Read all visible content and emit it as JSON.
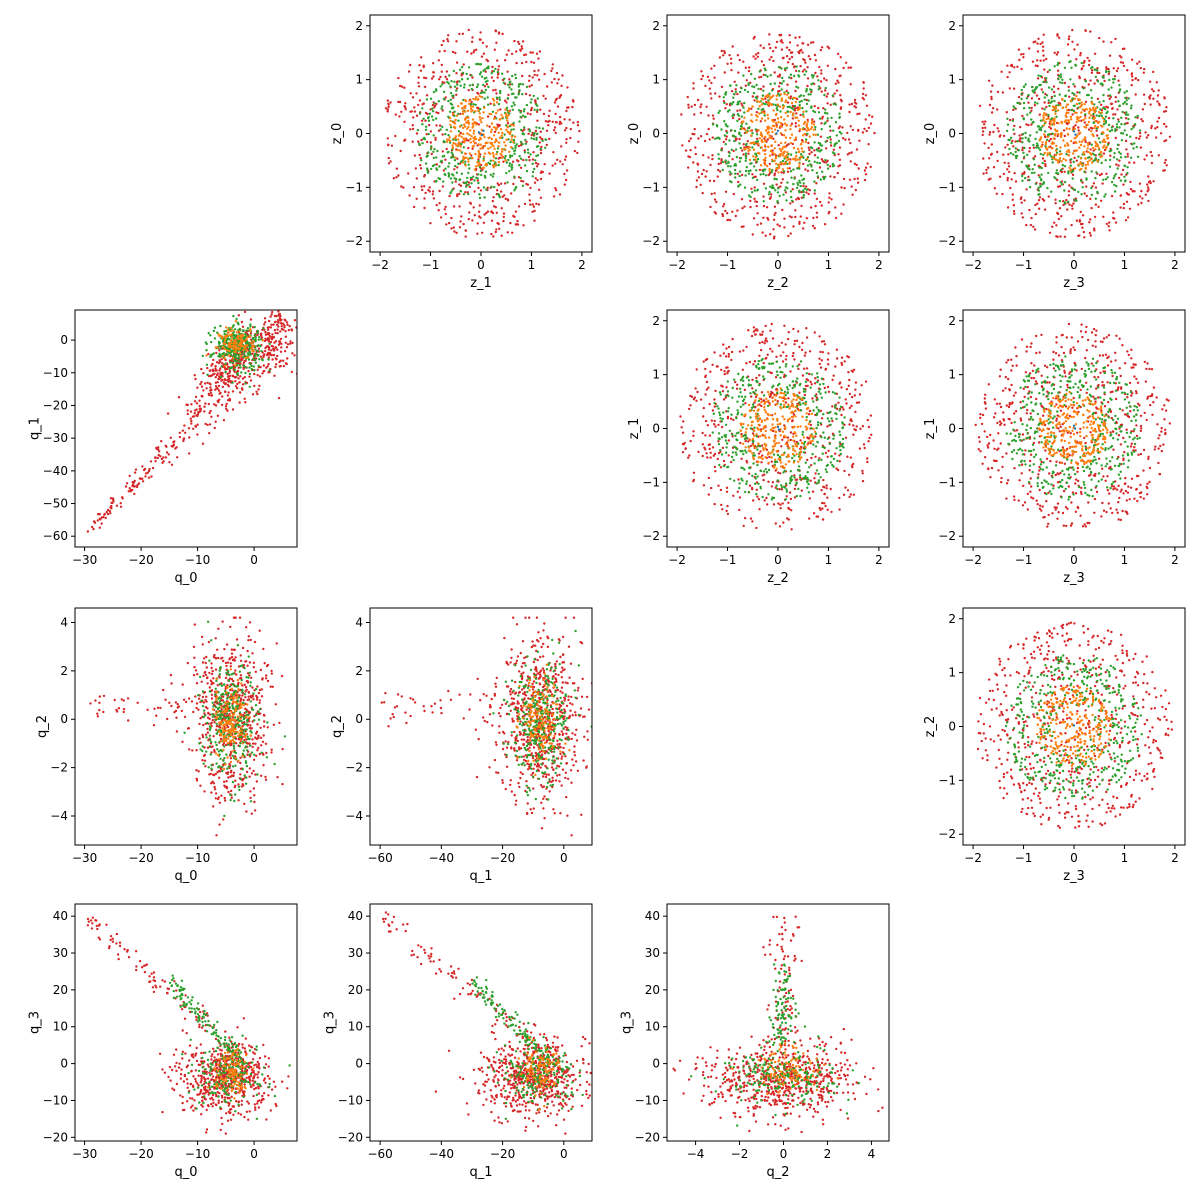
{
  "figure": {
    "series_colors": [
      "#1f77b4",
      "#ff7f0e",
      "#2ca02c",
      "#d62728"
    ]
  },
  "chart_data": [
    {
      "type": "scatter",
      "id": "z1-z0",
      "xlabel": "z_1",
      "ylabel": "z_0",
      "xlim": [
        -2.2,
        2.2
      ],
      "ylim": [
        -2.2,
        2.2
      ],
      "xticks": [
        -2,
        -1,
        0,
        1,
        2
      ],
      "yticks": [
        -2,
        -1,
        0,
        1,
        2
      ],
      "distribution": "disk",
      "series": [
        {
          "color": "#1f77b4",
          "points": [
            [
              0.05,
              0.05
            ],
            [
              0.02,
              -0.03
            ],
            [
              -0.04,
              0.02
            ]
          ]
        },
        {
          "color": "#ff7f0e",
          "radius": [
            0,
            0.7
          ],
          "n": 260
        },
        {
          "color": "#2ca02c",
          "radius": [
            0.4,
            1.3
          ],
          "n": 420
        },
        {
          "color": "#d62728",
          "radius": [
            0,
            1.95
          ],
          "n": 620
        }
      ]
    },
    {
      "type": "scatter",
      "id": "z2-z0",
      "xlabel": "z_2",
      "ylabel": "z_0",
      "xlim": [
        -2.2,
        2.2
      ],
      "ylim": [
        -2.2,
        2.2
      ],
      "xticks": [
        -2,
        -1,
        0,
        1,
        2
      ],
      "yticks": [
        -2,
        -1,
        0,
        1,
        2
      ],
      "distribution": "disk",
      "series": [
        {
          "color": "#1f77b4",
          "points": [
            [
              0.0,
              0.05
            ],
            [
              -0.03,
              0.0
            ]
          ]
        },
        {
          "color": "#ff7f0e",
          "radius": [
            0,
            0.75
          ],
          "n": 260
        },
        {
          "color": "#2ca02c",
          "radius": [
            0.4,
            1.3
          ],
          "n": 420
        },
        {
          "color": "#d62728",
          "radius": [
            0,
            1.95
          ],
          "n": 620
        }
      ]
    },
    {
      "type": "scatter",
      "id": "z3-z0",
      "xlabel": "z_3",
      "ylabel": "z_0",
      "xlim": [
        -2.2,
        2.2
      ],
      "ylim": [
        -2.2,
        2.2
      ],
      "xticks": [
        -2,
        -1,
        0,
        1,
        2
      ],
      "yticks": [
        -2,
        -1,
        0,
        1,
        2
      ],
      "distribution": "disk",
      "series": [
        {
          "color": "#1f77b4",
          "points": [
            [
              0.0,
              0.04
            ],
            [
              0.03,
              -0.02
            ]
          ]
        },
        {
          "color": "#ff7f0e",
          "radius": [
            0,
            0.7
          ],
          "n": 260
        },
        {
          "color": "#2ca02c",
          "radius": [
            0.4,
            1.35
          ],
          "n": 420
        },
        {
          "color": "#d62728",
          "radius": [
            0,
            1.95
          ],
          "n": 620
        }
      ]
    },
    {
      "type": "scatter",
      "id": "q0-q1",
      "xlabel": "q_0",
      "ylabel": "q_1",
      "xlim": [
        -31.7,
        7.6
      ],
      "ylim": [
        -63.3,
        9.2
      ],
      "xticks": [
        -30,
        -20,
        -10,
        0
      ],
      "yticks": [
        -60,
        -50,
        -40,
        -30,
        -20,
        -10,
        0
      ],
      "distribution": "wedge_q0q1",
      "series": [
        {
          "color": "#ff7f0e",
          "n": 120
        },
        {
          "color": "#2ca02c",
          "n": 320
        },
        {
          "color": "#d62728",
          "n": 700
        }
      ]
    },
    {
      "type": "scatter",
      "id": "z2-z1",
      "xlabel": "z_2",
      "ylabel": "z_1",
      "xlim": [
        -2.2,
        2.2
      ],
      "ylim": [
        -2.2,
        2.2
      ],
      "xticks": [
        -2,
        -1,
        0,
        1,
        2
      ],
      "yticks": [
        -2,
        -1,
        0,
        1,
        2
      ],
      "distribution": "disk",
      "series": [
        {
          "color": "#1f77b4",
          "points": [
            [
              0.0,
              0.03
            ],
            [
              0.02,
              -0.02
            ]
          ]
        },
        {
          "color": "#ff7f0e",
          "radius": [
            0,
            0.75
          ],
          "n": 260
        },
        {
          "color": "#2ca02c",
          "radius": [
            0.4,
            1.35
          ],
          "n": 420
        },
        {
          "color": "#d62728",
          "radius": [
            0,
            1.95
          ],
          "n": 620
        }
      ]
    },
    {
      "type": "scatter",
      "id": "z3-z1",
      "xlabel": "z_3",
      "ylabel": "z_1",
      "xlim": [
        -2.2,
        2.2
      ],
      "ylim": [
        -2.2,
        2.2
      ],
      "xticks": [
        -2,
        -1,
        0,
        1,
        2
      ],
      "yticks": [
        -2,
        -1,
        0,
        1,
        2
      ],
      "distribution": "disk",
      "series": [
        {
          "color": "#1f77b4",
          "points": [
            [
              0.0,
              0.05
            ],
            [
              0.02,
              0.0
            ]
          ]
        },
        {
          "color": "#ff7f0e",
          "radius": [
            0,
            0.7
          ],
          "n": 260
        },
        {
          "color": "#2ca02c",
          "radius": [
            0.4,
            1.35
          ],
          "n": 420
        },
        {
          "color": "#d62728",
          "radius": [
            0,
            1.95
          ],
          "n": 620
        }
      ]
    },
    {
      "type": "scatter",
      "id": "q0-q2",
      "xlabel": "q_0",
      "ylabel": "q_2",
      "xlim": [
        -31.7,
        7.6
      ],
      "ylim": [
        -5.2,
        4.6
      ],
      "xticks": [
        -30,
        -20,
        -10,
        0
      ],
      "yticks": [
        -4,
        -2,
        0,
        2,
        4
      ],
      "distribution": "blob_q2",
      "series": [
        {
          "color": "#ff7f0e",
          "n": 150
        },
        {
          "color": "#2ca02c",
          "n": 320
        },
        {
          "color": "#d62728",
          "n": 700
        }
      ]
    },
    {
      "type": "scatter",
      "id": "q1-q2",
      "xlabel": "q_1",
      "ylabel": "q_2",
      "xlim": [
        -63.3,
        9.2
      ],
      "ylim": [
        -5.2,
        4.6
      ],
      "xticks": [
        -60,
        -40,
        -20,
        0
      ],
      "yticks": [
        -4,
        -2,
        0,
        2,
        4
      ],
      "distribution": "blob_q2",
      "series": [
        {
          "color": "#ff7f0e",
          "n": 150
        },
        {
          "color": "#2ca02c",
          "n": 320
        },
        {
          "color": "#d62728",
          "n": 700
        }
      ]
    },
    {
      "type": "scatter",
      "id": "z3-z2",
      "xlabel": "z_3",
      "ylabel": "z_2",
      "xlim": [
        -2.2,
        2.2
      ],
      "ylim": [
        -2.2,
        2.2
      ],
      "xticks": [
        -2,
        -1,
        0,
        1,
        2
      ],
      "yticks": [
        -2,
        -1,
        0,
        1,
        2
      ],
      "distribution": "disk",
      "series": [
        {
          "color": "#1f77b4",
          "points": [
            [
              0.0,
              0.02
            ]
          ]
        },
        {
          "color": "#ff7f0e",
          "radius": [
            0,
            0.75
          ],
          "n": 260
        },
        {
          "color": "#2ca02c",
          "radius": [
            0.4,
            1.35
          ],
          "n": 420
        },
        {
          "color": "#d62728",
          "radius": [
            0,
            1.95
          ],
          "n": 620
        }
      ]
    },
    {
      "type": "scatter",
      "id": "q0-q3",
      "xlabel": "q_0",
      "ylabel": "q_3",
      "xlim": [
        -31.7,
        7.6
      ],
      "ylim": [
        -21.0,
        43.3
      ],
      "xticks": [
        -30,
        -20,
        -10,
        0
      ],
      "yticks": [
        -20,
        -10,
        0,
        10,
        20,
        30,
        40
      ],
      "distribution": "tail_q3",
      "series": [
        {
          "color": "#ff7f0e",
          "n": 100
        },
        {
          "color": "#2ca02c",
          "n": 300
        },
        {
          "color": "#d62728",
          "n": 700
        }
      ]
    },
    {
      "type": "scatter",
      "id": "q1-q3",
      "xlabel": "q_1",
      "ylabel": "q_3",
      "xlim": [
        -63.3,
        9.2
      ],
      "ylim": [
        -21.0,
        43.3
      ],
      "xticks": [
        -60,
        -40,
        -20,
        0
      ],
      "yticks": [
        -20,
        -10,
        0,
        10,
        20,
        30,
        40
      ],
      "distribution": "tail_q3",
      "series": [
        {
          "color": "#ff7f0e",
          "n": 100
        },
        {
          "color": "#2ca02c",
          "n": 300
        },
        {
          "color": "#d62728",
          "n": 700
        }
      ]
    },
    {
      "type": "scatter",
      "id": "q2-q3",
      "xlabel": "q_2",
      "ylabel": "q_3",
      "xlim": [
        -5.3,
        4.8
      ],
      "ylim": [
        -21.0,
        43.3
      ],
      "xticks": [
        -4,
        -2,
        0,
        2,
        4
      ],
      "yticks": [
        -20,
        -10,
        0,
        10,
        20,
        30,
        40
      ],
      "distribution": "spike_q3",
      "series": [
        {
          "color": "#ff7f0e",
          "n": 100
        },
        {
          "color": "#2ca02c",
          "n": 300
        },
        {
          "color": "#d62728",
          "n": 700
        }
      ]
    }
  ]
}
